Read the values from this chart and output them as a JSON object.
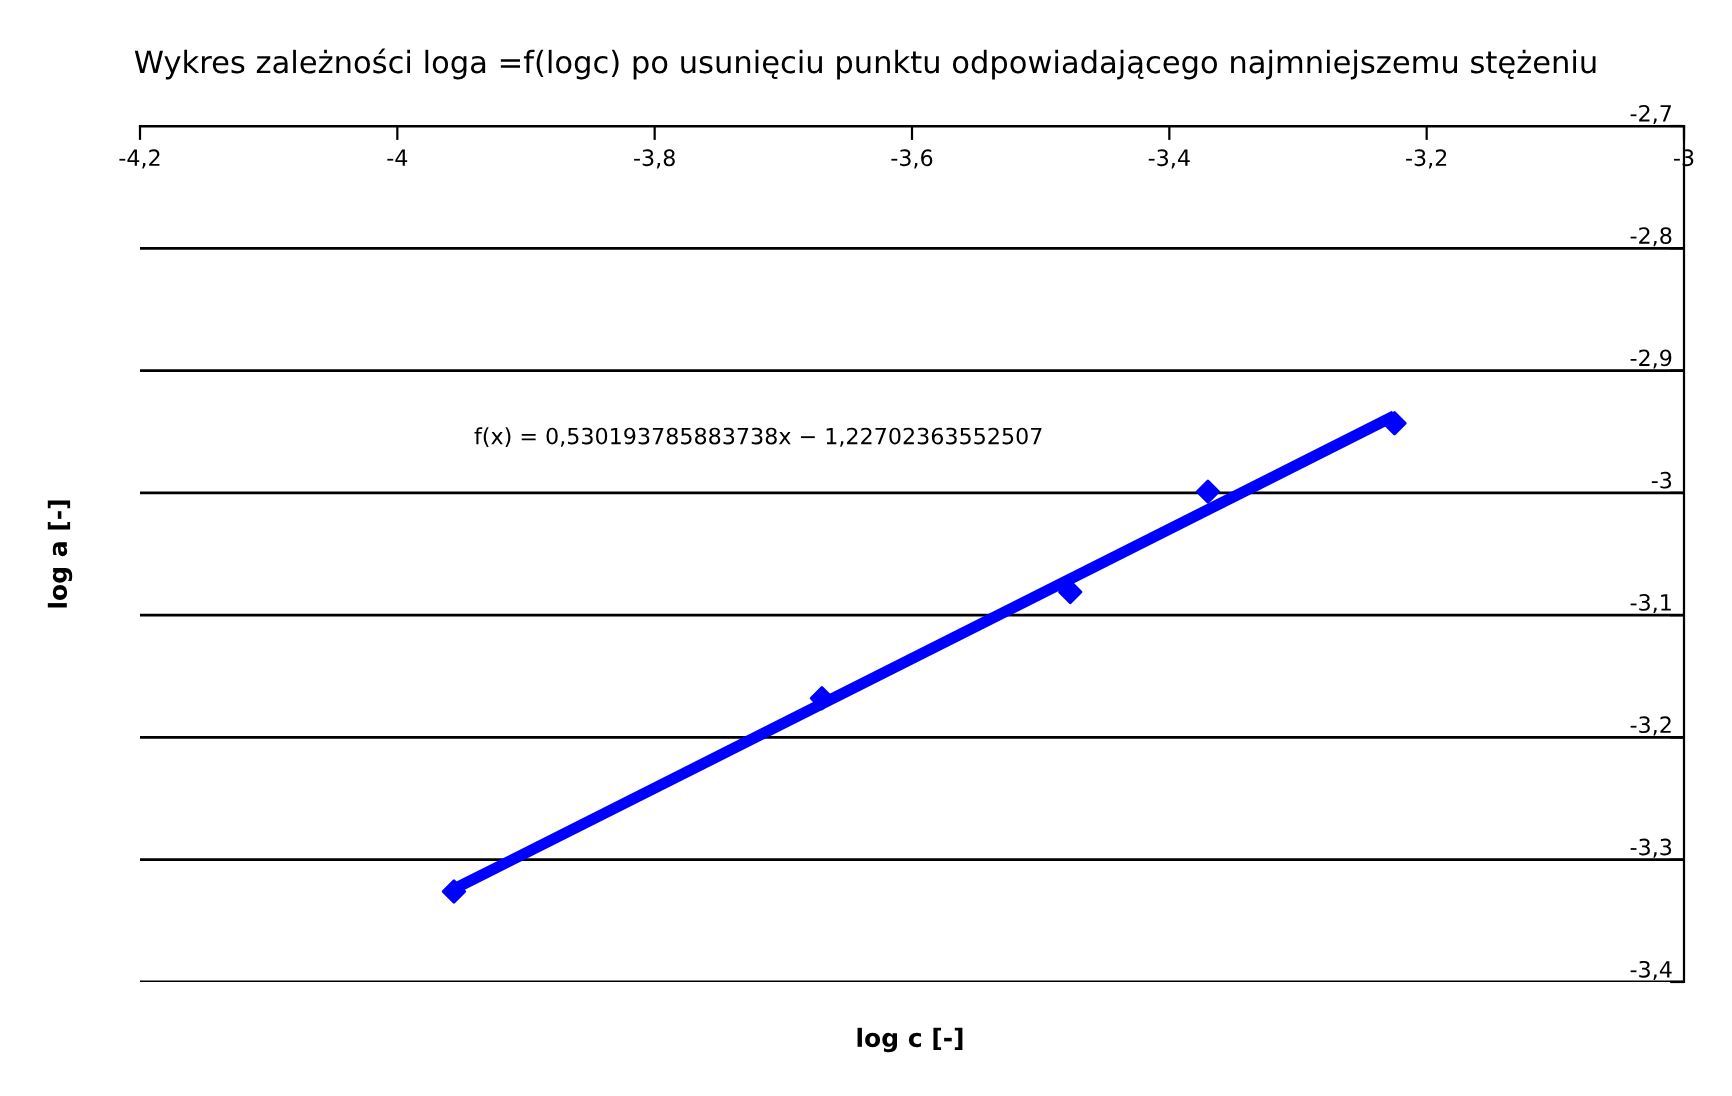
{
  "chart_data": {
    "type": "scatter",
    "title": "Wykres zależności loga =f(logc) po usunięciu punktu odpowiadającego najmniejszemu stężeniu",
    "xlabel": "log c [-]",
    "ylabel": "log a [-]",
    "series": [
      {
        "color": "#0000ff",
        "marker": "diamond",
        "x": [
          -3.956,
          -3.67,
          -3.477,
          -3.37,
          -3.225
        ],
        "values": [
          -3.326,
          -3.168,
          -3.081,
          -2.999,
          -2.943
        ]
      },
      {
        "type": "line",
        "color": "#0000ff",
        "marker": "none",
        "line_style": "solid",
        "x": [
          -3.956,
          -3.225
        ],
        "values": [
          -3.324,
          -2.937
        ]
      }
    ],
    "annotations": [
      "f(x) = 0,530193785883738x − 1,22702363552507"
    ],
    "xlim": [
      -4.2,
      -3
    ],
    "xticks": [
      {
        "value": -4.2,
        "label": "-4,2"
      },
      {
        "value": -4,
        "label": "-4"
      },
      {
        "value": -3.8,
        "label": "-3,8"
      },
      {
        "value": -3.6,
        "label": "-3,6"
      },
      {
        "value": -3.4,
        "label": "-3,4"
      },
      {
        "value": -3.2,
        "label": "-3,2"
      },
      {
        "value": -3,
        "label": "-3"
      }
    ],
    "ylim": [
      -3.4,
      -2.7
    ],
    "yticks": [
      {
        "value": -2.7,
        "label": "-2,7"
      },
      {
        "value": -2.8,
        "label": "-2,8"
      },
      {
        "value": -2.9,
        "label": "-2,9"
      },
      {
        "value": -3,
        "label": "-3"
      },
      {
        "value": -3.1,
        "label": "-3,1"
      },
      {
        "value": -3.2,
        "label": "-3,2"
      },
      {
        "value": -3.3,
        "label": "-3,3"
      },
      {
        "value": -3.4,
        "label": "-3,4"
      }
    ],
    "grid": "y",
    "legend": false
  }
}
